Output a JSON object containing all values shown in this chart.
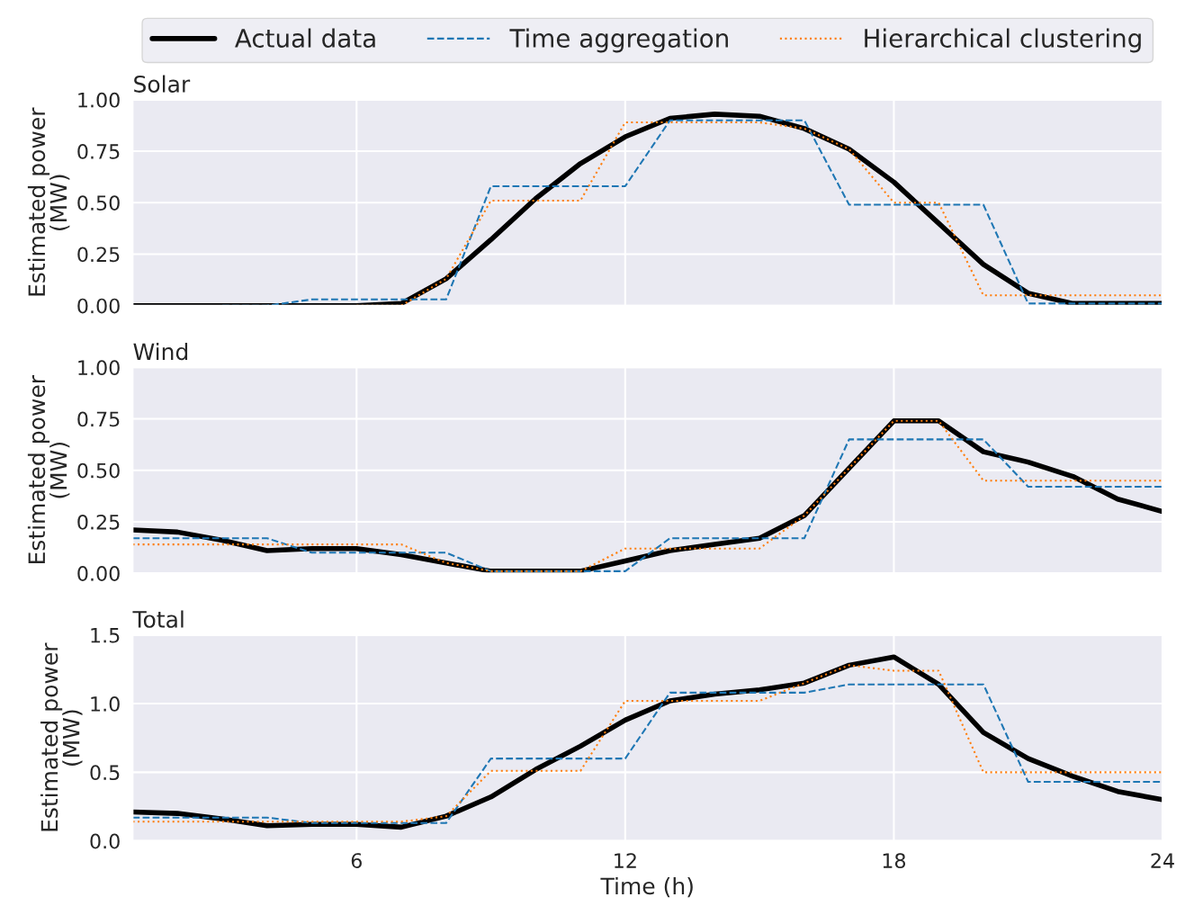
{
  "chart_data": [
    {
      "type": "line",
      "title": "Solar",
      "ylabel": "Estimated power\n(MW)",
      "xlim": [
        1,
        24
      ],
      "xticks": [
        6,
        12,
        18,
        24
      ],
      "ylim": [
        0,
        1.0
      ],
      "yticks": [
        {
          "value": 0,
          "label": "0.00"
        },
        {
          "value": 0.25,
          "label": "0.25"
        },
        {
          "value": 0.5,
          "label": "0.50"
        },
        {
          "value": 0.75,
          "label": "0.75"
        },
        {
          "value": 1.0,
          "label": "1.00"
        }
      ],
      "grid": true,
      "legend": "top",
      "tick_labels": "y",
      "x": [
        1,
        2,
        3,
        4,
        5,
        6,
        7,
        8,
        9,
        10,
        11,
        12,
        13,
        14,
        15,
        16,
        17,
        18,
        19,
        20,
        21,
        22,
        23,
        24
      ],
      "series": [
        {
          "name": "Actual data",
          "color": "#000000",
          "line_style": "solid",
          "values": [
            0,
            0,
            0,
            0,
            0,
            0,
            0.01,
            0.13,
            0.32,
            0.52,
            0.69,
            0.82,
            0.91,
            0.93,
            0.92,
            0.86,
            0.76,
            0.6,
            0.4,
            0.2,
            0.06,
            0.01,
            0.01,
            0.01
          ]
        },
        {
          "name": "Time aggregation",
          "color": "#1f77b4",
          "line_style": "dashed",
          "values": [
            null,
            null,
            0,
            0,
            0.03,
            0.03,
            0.03,
            0.03,
            0.58,
            0.58,
            0.58,
            0.58,
            0.9,
            0.9,
            0.9,
            0.9,
            0.49,
            0.49,
            0.49,
            0.49,
            0.01,
            0.01,
            0.01,
            0.01
          ]
        },
        {
          "name": "Hierarchical clustering",
          "color": "#ff7f0e",
          "line_style": "dotted",
          "values": [
            null,
            null,
            null,
            null,
            null,
            0,
            0,
            0.13,
            0.51,
            0.51,
            0.51,
            0.89,
            0.89,
            0.89,
            0.89,
            0.86,
            0.76,
            0.5,
            0.5,
            0.05,
            0.05,
            0.05,
            0.05,
            0.05
          ]
        }
      ]
    },
    {
      "type": "line",
      "title": "Wind",
      "ylabel": "Estimated power\n(MW)",
      "xlim": [
        1,
        24
      ],
      "xticks": [
        6,
        12,
        18,
        24
      ],
      "ylim": [
        0,
        1.0
      ],
      "yticks": [
        {
          "value": 0,
          "label": "0.00"
        },
        {
          "value": 0.25,
          "label": "0.25"
        },
        {
          "value": 0.5,
          "label": "0.50"
        },
        {
          "value": 0.75,
          "label": "0.75"
        },
        {
          "value": 1.0,
          "label": "1.00"
        }
      ],
      "grid": true,
      "tick_labels": "y",
      "x": [
        1,
        2,
        3,
        4,
        5,
        6,
        7,
        8,
        9,
        10,
        11,
        12,
        13,
        14,
        15,
        16,
        17,
        18,
        19,
        20,
        21,
        22,
        23,
        24
      ],
      "series": [
        {
          "color": "#000000",
          "line_style": "solid",
          "values": [
            0.21,
            0.2,
            0.16,
            0.11,
            0.12,
            0.12,
            0.09,
            0.05,
            0.01,
            0.01,
            0.01,
            0.06,
            0.11,
            0.14,
            0.17,
            0.28,
            0.51,
            0.74,
            0.74,
            0.59,
            0.54,
            0.47,
            0.36,
            0.3
          ]
        },
        {
          "color": "#1f77b4",
          "line_style": "dashed",
          "values": [
            0.17,
            0.17,
            0.17,
            0.17,
            0.1,
            0.1,
            0.1,
            0.1,
            0.01,
            0.01,
            0.01,
            0.01,
            0.17,
            0.17,
            0.17,
            0.17,
            0.65,
            0.65,
            0.65,
            0.65,
            0.42,
            0.42,
            0.42,
            0.42
          ]
        },
        {
          "color": "#ff7f0e",
          "line_style": "dotted",
          "values": [
            0.14,
            0.14,
            0.14,
            0.14,
            0.14,
            0.14,
            0.14,
            0.05,
            0.01,
            0.01,
            0.01,
            0.12,
            0.12,
            0.12,
            0.12,
            0.28,
            0.51,
            0.74,
            0.74,
            0.45,
            0.45,
            0.45,
            0.45,
            0.45
          ]
        }
      ]
    },
    {
      "type": "line",
      "title": "Total",
      "ylabel": "Estimated power\n(MW)",
      "xlabel": "Time (h)",
      "xlim": [
        1,
        24
      ],
      "xticks": [
        6,
        12,
        18,
        24
      ],
      "ylim": [
        0,
        1.5
      ],
      "yticks": [
        {
          "value": 0,
          "label": "0.0"
        },
        {
          "value": 0.5,
          "label": "0.5"
        },
        {
          "value": 1.0,
          "label": "1.0"
        },
        {
          "value": 1.5,
          "label": "1.5"
        }
      ],
      "grid": true,
      "x": [
        1,
        2,
        3,
        4,
        5,
        6,
        7,
        8,
        9,
        10,
        11,
        12,
        13,
        14,
        15,
        16,
        17,
        18,
        19,
        20,
        21,
        22,
        23,
        24
      ],
      "series": [
        {
          "color": "#000000",
          "line_style": "solid",
          "values": [
            0.21,
            0.2,
            0.16,
            0.11,
            0.12,
            0.12,
            0.1,
            0.18,
            0.32,
            0.52,
            0.69,
            0.88,
            1.02,
            1.07,
            1.1,
            1.15,
            1.28,
            1.34,
            1.14,
            0.79,
            0.6,
            0.47,
            0.36,
            0.3
          ]
        },
        {
          "color": "#1f77b4",
          "line_style": "dashed",
          "values": [
            0.17,
            0.17,
            0.17,
            0.17,
            0.13,
            0.13,
            0.13,
            0.13,
            0.6,
            0.6,
            0.6,
            0.6,
            1.08,
            1.08,
            1.08,
            1.08,
            1.14,
            1.14,
            1.14,
            1.14,
            0.43,
            0.43,
            0.43,
            0.43
          ]
        },
        {
          "color": "#ff7f0e",
          "line_style": "dotted",
          "values": [
            0.14,
            0.14,
            0.14,
            0.14,
            0.14,
            0.14,
            0.14,
            0.18,
            0.51,
            0.51,
            0.51,
            1.02,
            1.02,
            1.02,
            1.02,
            1.15,
            1.28,
            1.24,
            1.24,
            0.5,
            0.5,
            0.5,
            0.5,
            0.5
          ]
        }
      ]
    }
  ]
}
